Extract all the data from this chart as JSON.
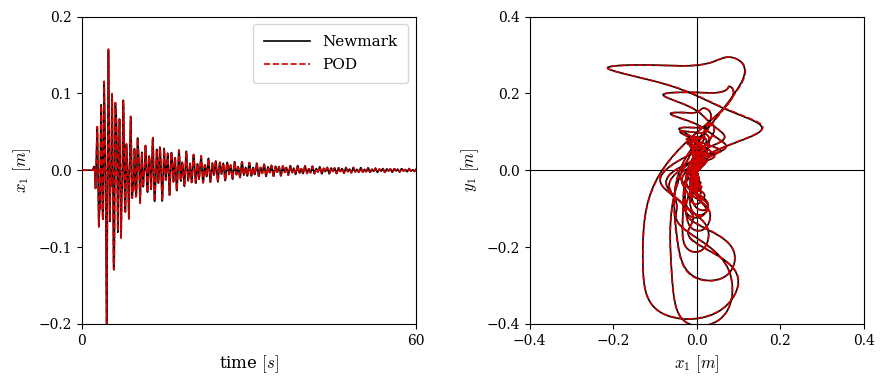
{
  "left_xlim": [
    0,
    60
  ],
  "left_ylim": [
    -0.2,
    0.2
  ],
  "left_yticks": [
    -0.2,
    -0.1,
    0,
    0.1,
    0.2
  ],
  "left_xticks": [
    0,
    60
  ],
  "left_xlabel": "time $[s]$",
  "left_ylabel": "$x_1$ $[m]$",
  "right_xlim": [
    -0.4,
    0.4
  ],
  "right_ylim": [
    -0.4,
    0.4
  ],
  "right_yticks": [
    -0.4,
    -0.2,
    0,
    0.2,
    0.4
  ],
  "right_xticks": [
    -0.4,
    -0.2,
    0,
    0.2,
    0.4
  ],
  "right_xlabel": "$x_1$ $[m]$",
  "right_ylabel": "$y_1$ $[m]$",
  "newmark_color": "#000000",
  "pod_color": "#cc0000",
  "newmark_lw": 1.2,
  "pod_lw": 1.2,
  "legend_newmark": "Newmark",
  "legend_pod": "POD",
  "figsize": [
    8.86,
    3.86
  ],
  "dpi": 100
}
